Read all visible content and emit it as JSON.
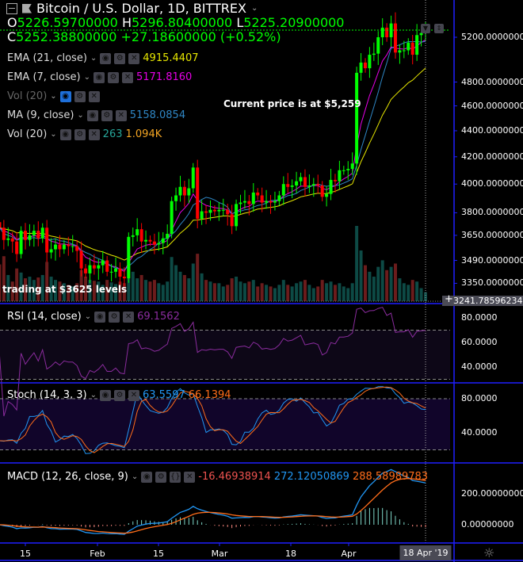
{
  "header": {
    "title": "Bitcoin / U.S. Dollar, 1D, BITTREX",
    "ohlc": {
      "o_label": "O",
      "o": "5226.59700000",
      "h_label": "H",
      "h": "5296.80400000",
      "l_label": "L",
      "l": "5225.20900000",
      "c_label": "C",
      "c": "5252.38800000",
      "change": "+27.18600000 (+0.52%)"
    }
  },
  "indicators": [
    {
      "label": "EMA (21, close)",
      "value": "4915.4407",
      "color": "#e6e600"
    },
    {
      "label": "EMA (7, close)",
      "value": "5171.8160",
      "color": "#e600e6"
    },
    {
      "label": "Vol (20)",
      "value": "",
      "color": "#777777",
      "hidden": true
    },
    {
      "label": "MA (9, close)",
      "value": "5158.0854",
      "color": "#2f86c4"
    },
    {
      "label": "Vol (20)",
      "value": "263",
      "value2": "1.094K",
      "color": "#26a69a",
      "color2": "#f5a623"
    }
  ],
  "annotations": {
    "current_price": "Current price is at $5,259",
    "trading_level": "trading at $3625  levels"
  },
  "price_axis": {
    "ticks": [
      "5200.00000000",
      "4800.00000000",
      "4600.00000000",
      "4400.00000000",
      "4200.00000000",
      "4000.00000000",
      "3800.00000000",
      "3650.00000000",
      "3490.00000000",
      "3350.00000000"
    ],
    "crosshair_label": "3241.78596234",
    "scale": "log"
  },
  "rsi": {
    "label": "RSI (14, close)",
    "value": "69.1562",
    "ticks": [
      "80.0000",
      "60.0000",
      "40.0000"
    ],
    "color": "#8b2c9e"
  },
  "stoch": {
    "label": "Stoch (14, 3, 3)",
    "k_value": "63.5597",
    "d_value": "66.1394",
    "ticks": [
      "80.0000",
      "40.0000"
    ],
    "k_color": "#2196f3",
    "d_color": "#ff6d1a"
  },
  "macd": {
    "label": "MACD (12, 26, close, 9)",
    "hist_value": "-16.46938914",
    "macd_value": "272.12050869",
    "signal_value": "288.58989783",
    "ticks": [
      "200.00000000",
      "0.00000000"
    ],
    "hist_color": "#ef5350",
    "macd_color": "#2196f3",
    "signal_color": "#ff6d1a"
  },
  "time_axis": {
    "labels": [
      "15",
      "Feb",
      "15",
      "Mar",
      "18",
      "Apr"
    ],
    "crosshair_label": "18 Apr '19"
  },
  "colors": {
    "up": "#00ff00",
    "down": "#ff0000",
    "vol_up": "#0d4a45",
    "vol_down": "#6b1c1c",
    "separator": "#1f1fff"
  },
  "chart_data": {
    "type": "candlestick",
    "title": "Bitcoin / U.S. Dollar, 1D, BITTREX",
    "yscale": "log",
    "ylim": [
      3240,
      5400
    ],
    "dates": [
      "2019-01-09",
      "2019-01-10",
      "2019-01-11",
      "2019-01-12",
      "2019-01-13",
      "2019-01-14",
      "2019-01-15",
      "2019-01-16",
      "2019-01-17",
      "2019-01-18",
      "2019-01-19",
      "2019-01-20",
      "2019-01-21",
      "2019-01-22",
      "2019-01-23",
      "2019-01-24",
      "2019-01-25",
      "2019-01-26",
      "2019-01-27",
      "2019-01-28",
      "2019-01-29",
      "2019-01-30",
      "2019-01-31",
      "2019-02-01",
      "2019-02-02",
      "2019-02-03",
      "2019-02-04",
      "2019-02-05",
      "2019-02-06",
      "2019-02-07",
      "2019-02-08",
      "2019-02-09",
      "2019-02-10",
      "2019-02-11",
      "2019-02-12",
      "2019-02-13",
      "2019-02-14",
      "2019-02-15",
      "2019-02-16",
      "2019-02-17",
      "2019-02-18",
      "2019-02-19",
      "2019-02-20",
      "2019-02-21",
      "2019-02-22",
      "2019-02-23",
      "2019-02-24",
      "2019-02-25",
      "2019-02-26",
      "2019-02-27",
      "2019-02-28",
      "2019-03-01",
      "2019-03-02",
      "2019-03-03",
      "2019-03-04",
      "2019-03-05",
      "2019-03-06",
      "2019-03-07",
      "2019-03-08",
      "2019-03-09",
      "2019-03-10",
      "2019-03-11",
      "2019-03-12",
      "2019-03-13",
      "2019-03-14",
      "2019-03-15",
      "2019-03-16",
      "2019-03-17",
      "2019-03-18",
      "2019-03-19",
      "2019-03-20",
      "2019-03-21",
      "2019-03-22",
      "2019-03-23",
      "2019-03-24",
      "2019-03-25",
      "2019-03-26",
      "2019-03-27",
      "2019-03-28",
      "2019-03-29",
      "2019-03-30",
      "2019-03-31",
      "2019-04-01",
      "2019-04-02",
      "2019-04-03",
      "2019-04-04",
      "2019-04-05",
      "2019-04-06",
      "2019-04-07",
      "2019-04-08",
      "2019-04-09",
      "2019-04-10",
      "2019-04-11",
      "2019-04-12",
      "2019-04-13",
      "2019-04-14",
      "2019-04-15",
      "2019-04-16",
      "2019-04-17",
      "2019-04-18"
    ],
    "close": [
      3700,
      3620,
      3630,
      3610,
      3530,
      3680,
      3620,
      3650,
      3680,
      3630,
      3700,
      3540,
      3560,
      3590,
      3560,
      3590,
      3580,
      3580,
      3550,
      3440,
      3410,
      3460,
      3440,
      3460,
      3490,
      3420,
      3420,
      3440,
      3390,
      3380,
      3640,
      3650,
      3690,
      3610,
      3620,
      3610,
      3590,
      3600,
      3630,
      3660,
      3880,
      3920,
      3980,
      3920,
      3970,
      4120,
      3760,
      3810,
      3800,
      3820,
      3810,
      3820,
      3820,
      3790,
      3710,
      3860,
      3870,
      3880,
      3860,
      3940,
      3920,
      3870,
      3880,
      3870,
      3880,
      3920,
      4000,
      3980,
      3990,
      4020,
      4050,
      3980,
      3990,
      4000,
      3990,
      3910,
      3930,
      4030,
      4020,
      4100,
      4100,
      4110,
      4150,
      4880,
      4970,
      4920,
      5040,
      5050,
      5200,
      5290,
      5200,
      5330,
      5060,
      5080,
      5080,
      5150,
      5040,
      5220,
      5240,
      5252
    ],
    "volume_k": [
      4.5,
      5.5,
      3.2,
      2.4,
      4.0,
      3.5,
      2.8,
      3.0,
      2.6,
      2.9,
      3.2,
      4.8,
      3.0,
      2.6,
      2.4,
      2.2,
      2.0,
      1.8,
      2.2,
      3.8,
      3.0,
      2.6,
      2.5,
      2.4,
      2.0,
      2.6,
      2.3,
      2.1,
      2.4,
      2.2,
      7.0,
      3.6,
      2.8,
      3.2,
      2.6,
      2.4,
      2.6,
      2.2,
      2.0,
      2.4,
      5.4,
      4.4,
      3.6,
      3.2,
      2.8,
      4.6,
      5.8,
      3.4,
      2.6,
      2.4,
      2.2,
      2.2,
      1.8,
      2.0,
      2.8,
      3.0,
      2.4,
      2.2,
      2.4,
      2.6,
      1.8,
      2.2,
      2.0,
      1.8,
      1.6,
      2.0,
      2.6,
      2.0,
      1.8,
      2.2,
      2.4,
      2.6,
      2.0,
      1.6,
      1.8,
      2.6,
      2.2,
      2.4,
      2.0,
      2.2,
      1.8,
      1.6,
      2.2,
      9.2,
      6.2,
      4.4,
      3.6,
      3.0,
      4.2,
      5.0,
      3.8,
      4.2,
      4.6,
      2.8,
      2.2,
      2.0,
      2.6,
      2.4,
      1.6,
      1.1
    ]
  }
}
